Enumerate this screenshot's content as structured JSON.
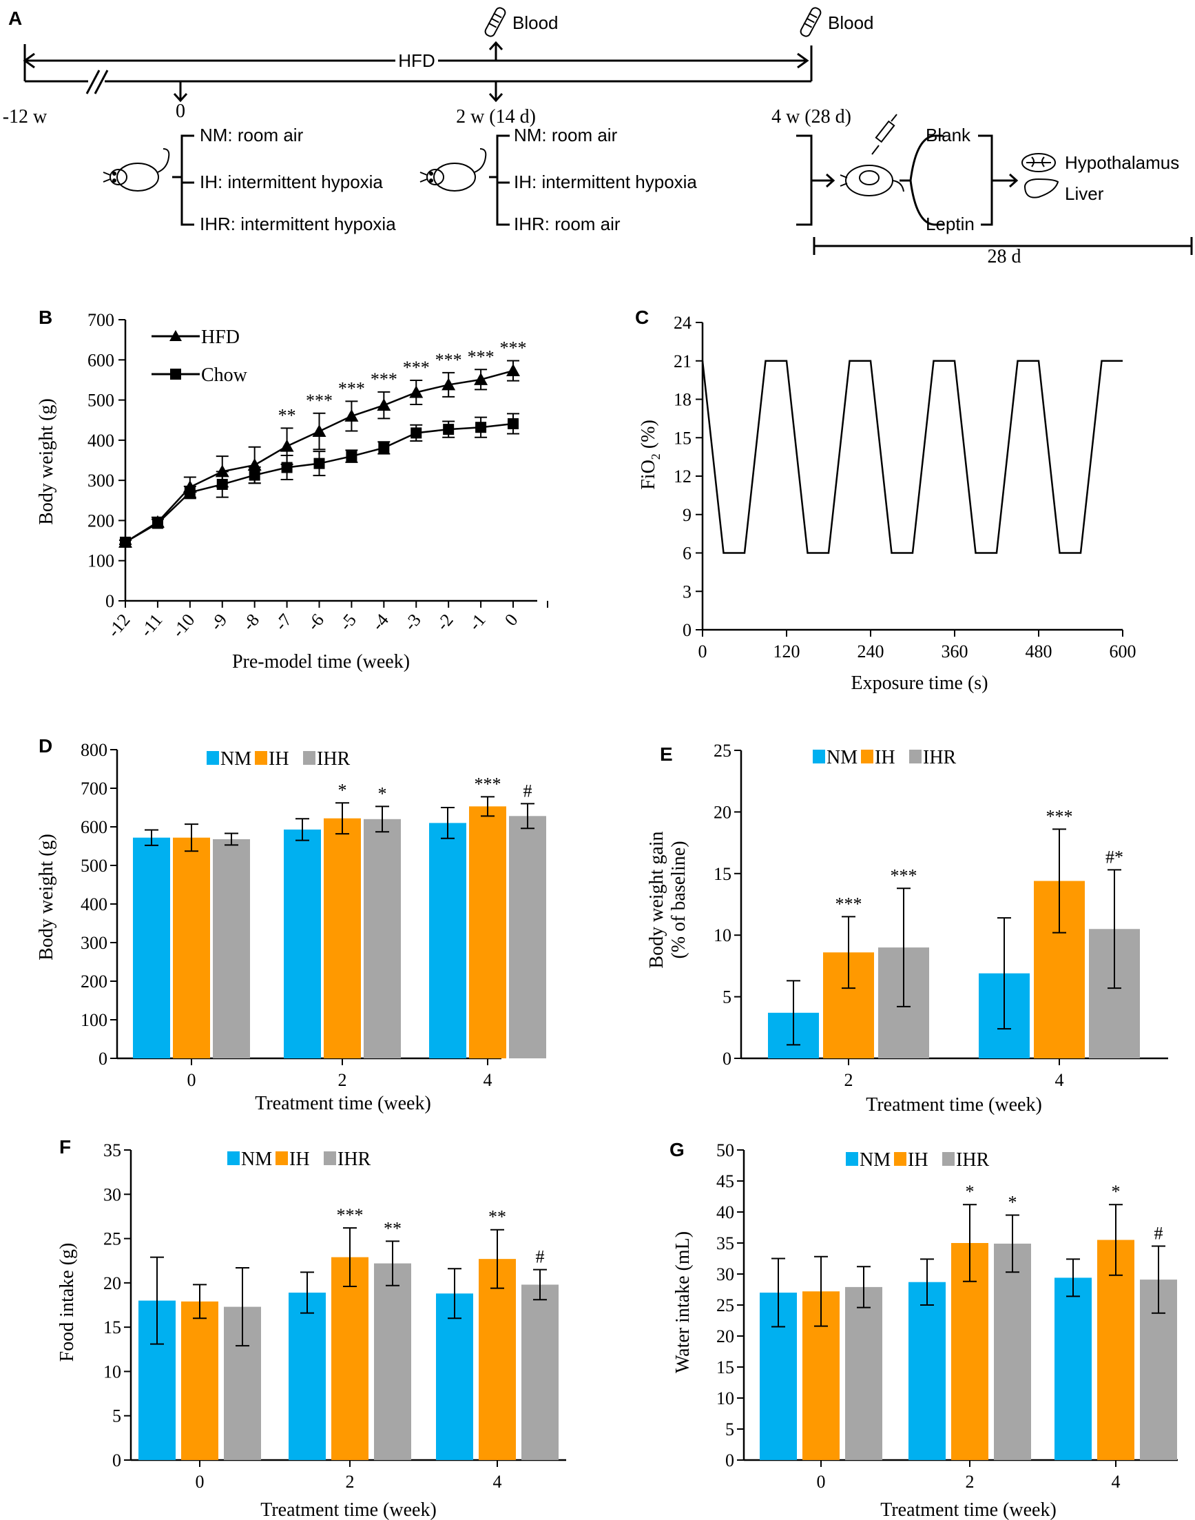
{
  "panels": {
    "A": {
      "label": "A",
      "blood_label": "Blood",
      "hfd_label": "HFD",
      "timepoints": [
        "-12 w",
        "0",
        "2 w (14 d)",
        "4 w (28 d)"
      ],
      "stage1": [
        "NM: room air",
        "IH: intermittent hypoxia",
        "IHR: intermittent hypoxia"
      ],
      "stage2": [
        "NM: room air",
        "IH: intermittent hypoxia",
        "IHR: room air"
      ],
      "treatment": [
        "Blank",
        "Leptin"
      ],
      "tissues": [
        "Hypothalamus",
        "Liver"
      ],
      "duration": "28 d"
    }
  },
  "chart_data": [
    {
      "id": "B",
      "panel_label": "B",
      "type": "line",
      "xlabel": "Pre-model time (week)",
      "ylabel": "Body weight (g)",
      "x": [
        -12,
        -11,
        -10,
        -9,
        -8,
        -7,
        -6,
        -5,
        -4,
        -3,
        -2,
        -1,
        0
      ],
      "xticklabels": [
        "-12",
        "-11",
        "-10",
        "-9",
        "-8",
        "-7",
        "-6",
        "-5",
        "-4",
        "-3",
        "-2",
        "-1",
        "0"
      ],
      "ylim": [
        0,
        700
      ],
      "yticks": [
        0,
        100,
        200,
        300,
        400,
        500,
        600,
        700
      ],
      "legend": "top-left",
      "series": [
        {
          "name": "HFD",
          "marker": "triangle",
          "values": [
            146,
            196,
            283,
            322,
            338,
            385,
            422,
            460,
            487,
            519,
            538,
            551,
            573
          ],
          "errors": [
            5,
            12,
            25,
            38,
            45,
            45,
            45,
            37,
            33,
            30,
            30,
            25,
            25
          ]
        },
        {
          "name": "Chow",
          "marker": "square",
          "values": [
            146,
            193,
            270,
            290,
            313,
            332,
            342,
            360,
            381,
            418,
            427,
            432,
            441
          ],
          "errors": [
            5,
            10,
            15,
            32,
            20,
            30,
            30,
            15,
            15,
            20,
            20,
            25,
            25
          ]
        }
      ],
      "annotations": [
        "",
        "",
        "",
        "",
        "",
        "**",
        "***",
        "***",
        "***",
        "***",
        "***",
        "***",
        "***"
      ]
    },
    {
      "id": "C",
      "panel_label": "C",
      "type": "line",
      "xlabel": "Exposure time (s)",
      "ylabel": "FiO2 (%)",
      "ylabel_main": "FiO",
      "ylabel_sub": "2",
      "ylabel_tail": " (%)",
      "xlim": [
        0,
        600
      ],
      "xticks": [
        0,
        120,
        240,
        360,
        480,
        600
      ],
      "ylim": [
        0,
        24
      ],
      "yticks": [
        0,
        3,
        6,
        9,
        12,
        15,
        18,
        21,
        24
      ],
      "series": [
        {
          "x": [
            0,
            30,
            60,
            90,
            120,
            150,
            180,
            210,
            240,
            270,
            300,
            330,
            360,
            390,
            420,
            450,
            480,
            510,
            540,
            570,
            600
          ],
          "values": [
            21,
            6,
            6,
            21,
            21,
            6,
            6,
            21,
            21,
            6,
            6,
            21,
            21,
            6,
            6,
            21,
            21,
            6,
            6,
            21,
            21
          ]
        }
      ]
    },
    {
      "id": "D",
      "panel_label": "D",
      "type": "bar",
      "xlabel": "Treatment time (week)",
      "ylabel": "Body weight (g)",
      "categories": [
        "0",
        "2",
        "4"
      ],
      "ylim": [
        0,
        800
      ],
      "yticks": [
        0,
        100,
        200,
        300,
        400,
        500,
        600,
        700,
        800
      ],
      "legend": "top",
      "series": [
        {
          "name": "NM",
          "color": "#00B0F0",
          "values": [
            572,
            593,
            610
          ],
          "errors": [
            20,
            28,
            40
          ],
          "annotations": [
            "",
            "",
            ""
          ]
        },
        {
          "name": "IH",
          "color": "#FF9900",
          "values": [
            572,
            622,
            653
          ],
          "errors": [
            35,
            40,
            25
          ],
          "annotations": [
            "",
            "*",
            "***"
          ]
        },
        {
          "name": "IHR",
          "color": "#A6A6A6",
          "values": [
            568,
            620,
            628
          ],
          "errors": [
            15,
            33,
            32
          ],
          "annotations": [
            "",
            "*",
            "#"
          ]
        }
      ]
    },
    {
      "id": "E",
      "panel_label": "E",
      "type": "bar",
      "xlabel": "Treatment time (week)",
      "ylabel": "Body weight gain",
      "ylabel2": "(% of baseline)",
      "categories": [
        "2",
        "4"
      ],
      "ylim": [
        0,
        25
      ],
      "yticks": [
        0,
        5,
        10,
        15,
        20,
        25
      ],
      "legend": "top",
      "series": [
        {
          "name": "NM",
          "color": "#00B0F0",
          "values": [
            3.7,
            6.9
          ],
          "errors": [
            2.6,
            4.5
          ],
          "annotations": [
            "",
            ""
          ]
        },
        {
          "name": "IH",
          "color": "#FF9900",
          "values": [
            8.6,
            14.4
          ],
          "errors": [
            2.9,
            4.2
          ],
          "annotations": [
            "***",
            "***"
          ]
        },
        {
          "name": "IHR",
          "color": "#A6A6A6",
          "values": [
            9.0,
            10.5
          ],
          "errors": [
            4.8,
            4.8
          ],
          "annotations": [
            "***",
            "#*"
          ]
        }
      ]
    },
    {
      "id": "F",
      "panel_label": "F",
      "type": "bar",
      "xlabel": "Treatment time (week)",
      "ylabel": "Food intake (g)",
      "categories": [
        "0",
        "2",
        "4"
      ],
      "ylim": [
        0,
        35
      ],
      "yticks": [
        0,
        5,
        10,
        15,
        20,
        25,
        30,
        35
      ],
      "legend": "top",
      "series": [
        {
          "name": "NM",
          "color": "#00B0F0",
          "values": [
            18.0,
            18.9,
            18.8
          ],
          "errors": [
            4.9,
            2.3,
            2.8
          ],
          "annotations": [
            "",
            "",
            ""
          ]
        },
        {
          "name": "IH",
          "color": "#FF9900",
          "values": [
            17.9,
            22.9,
            22.7
          ],
          "errors": [
            1.9,
            3.3,
            3.3
          ],
          "annotations": [
            "",
            "***",
            "**"
          ]
        },
        {
          "name": "IHR",
          "color": "#A6A6A6",
          "values": [
            17.3,
            22.2,
            19.8
          ],
          "errors": [
            4.4,
            2.5,
            1.7
          ],
          "annotations": [
            "",
            "**",
            "#"
          ]
        }
      ]
    },
    {
      "id": "G",
      "panel_label": "G",
      "type": "bar",
      "xlabel": "Treatment time (week)",
      "ylabel": "Water intake (mL)",
      "categories": [
        "0",
        "2",
        "4"
      ],
      "ylim": [
        0,
        50
      ],
      "yticks": [
        0,
        5,
        10,
        15,
        20,
        25,
        30,
        35,
        40,
        45,
        50
      ],
      "legend": "top",
      "series": [
        {
          "name": "NM",
          "color": "#00B0F0",
          "values": [
            27.0,
            28.7,
            29.4
          ],
          "errors": [
            5.5,
            3.7,
            3.0
          ],
          "annotations": [
            "",
            "",
            ""
          ]
        },
        {
          "name": "IH",
          "color": "#FF9900",
          "values": [
            27.2,
            35.0,
            35.5
          ],
          "errors": [
            5.6,
            6.2,
            5.7
          ],
          "annotations": [
            "",
            "*",
            "*"
          ]
        },
        {
          "name": "IHR",
          "color": "#A6A6A6",
          "values": [
            27.9,
            34.9,
            29.1
          ],
          "errors": [
            3.3,
            4.6,
            5.4
          ],
          "annotations": [
            "",
            "*",
            "#"
          ]
        }
      ]
    }
  ]
}
